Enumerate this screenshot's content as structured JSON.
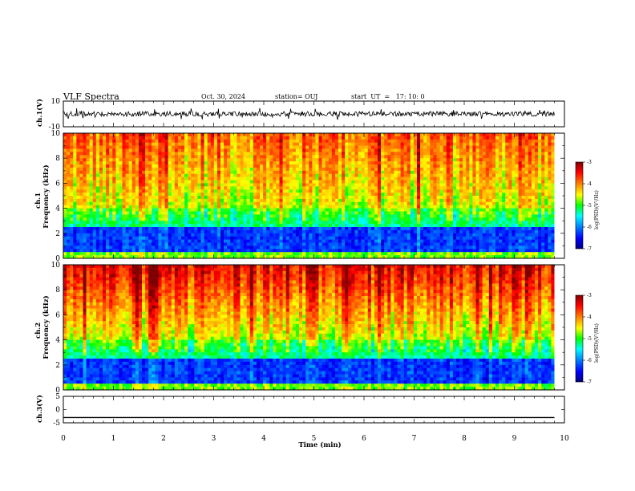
{
  "header": {
    "title": "VLF Spectra",
    "date": "Oct. 30, 2024",
    "station": "station= OUJ",
    "start": "start  UT  =   17: 10: 0"
  },
  "panels": {
    "ch1_wave": {
      "ylabel": "ch.1(V)",
      "ticks": [
        "10",
        "-10"
      ]
    },
    "ch1_spec": {
      "ylabel_top": "ch.1",
      "ylabel_bottom": "Frequency  (kHz)",
      "ticks": [
        "0",
        "2",
        "4",
        "6",
        "8",
        "10"
      ]
    },
    "ch2_spec": {
      "ylabel_top": "ch.2",
      "ylabel_bottom": "Frequency  (kHz)",
      "ticks": [
        "0",
        "2",
        "4",
        "6",
        "8",
        "10"
      ]
    },
    "ch3_wave": {
      "ylabel": "ch.3(V)",
      "ticks": [
        "5",
        "0",
        "-5"
      ]
    }
  },
  "colorbar": {
    "label": "log(PSD)(V²/Hz)",
    "ticks": [
      "-3",
      "-4",
      "-5",
      "-6",
      "-7"
    ]
  },
  "chart_data": {
    "type": "heatmap",
    "title": "VLF Spectra",
    "xlabel": "Time  (min)",
    "xlim": [
      0,
      10
    ],
    "x_ticks": [
      "0",
      "1",
      "2",
      "3",
      "4",
      "5",
      "6",
      "7",
      "8",
      "9",
      "10"
    ],
    "data_end_min": 9.8,
    "spectrograms": [
      {
        "name": "ch.1",
        "ylabel": "Frequency (kHz)",
        "ylim": [
          0,
          10
        ],
        "clim": [
          -7,
          -3
        ]
      },
      {
        "name": "ch.2",
        "ylabel": "Frequency (kHz)",
        "ylim": [
          0,
          10
        ],
        "clim": [
          -7,
          -3
        ]
      }
    ],
    "waveforms": [
      {
        "name": "ch.1(V)",
        "ylim": [
          -10,
          10
        ]
      },
      {
        "name": "ch.3(V)",
        "ylim": [
          -5,
          5
        ],
        "value": -3
      }
    ],
    "colormap": [
      "#00007f",
      "#0000ff",
      "#00ffff",
      "#00ff00",
      "#ffff00",
      "#ff0000",
      "#7f0000"
    ]
  }
}
